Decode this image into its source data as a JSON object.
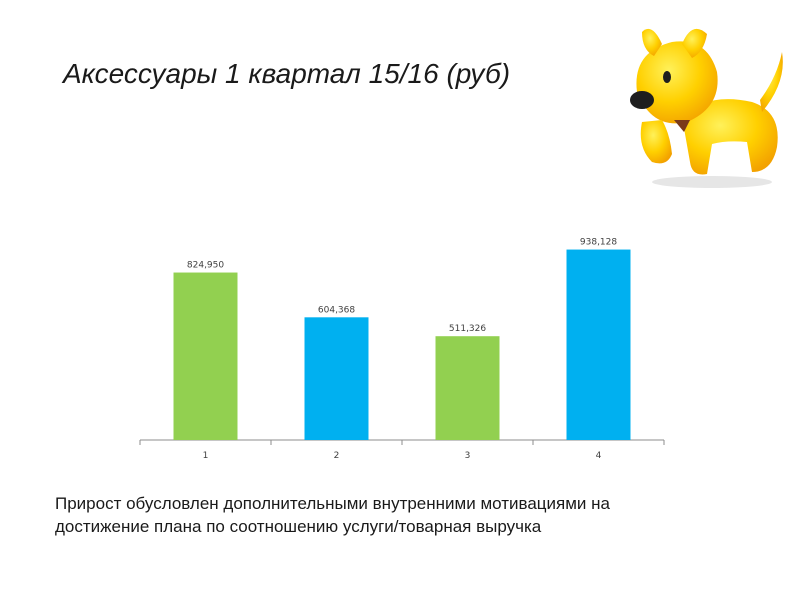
{
  "slide": {
    "title": "Аксессуары 1 квартал 15/16 (руб)",
    "caption_line1": "Прирост обусловлен дополнительными внутренними мотивациями на",
    "caption_line2": "достижение плана по соотношению услуги/товарная выручка"
  },
  "mascot": {
    "icon": "yellow-dog-mascot-icon"
  },
  "chart_data": {
    "type": "bar",
    "categories": [
      "1",
      "2",
      "3",
      "4"
    ],
    "values": [
      824950,
      604368,
      511326,
      938128
    ],
    "value_labels": [
      "824,950",
      "604,368",
      "511,326",
      "938,128"
    ],
    "colors": [
      "#92d050",
      "#00b0f0",
      "#92d050",
      "#00b0f0"
    ],
    "title": "",
    "xlabel": "",
    "ylabel": "",
    "ylim": [
      0,
      1000000
    ],
    "grid": false,
    "legend": "none"
  }
}
